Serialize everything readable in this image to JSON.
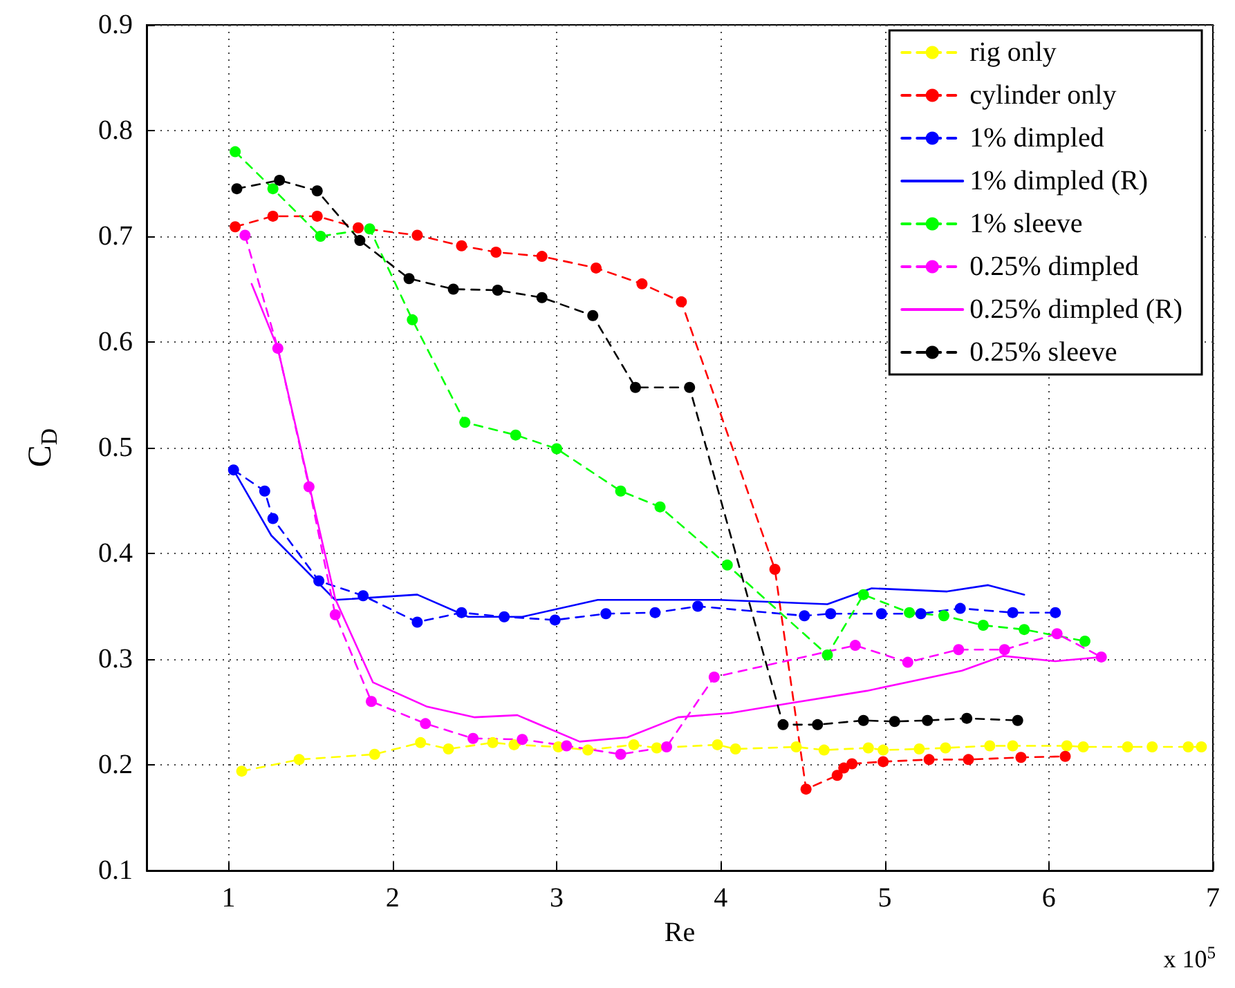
{
  "chart_data": {
    "type": "line",
    "xlabel": "Re",
    "ylabel": "C$_{D}$",
    "annotations": [
      "x 10$^{5}$"
    ],
    "xlim": [
      0.5,
      7
    ],
    "xticks": [
      1,
      2,
      3,
      4,
      5,
      6,
      7
    ],
    "ylim": [
      0.1,
      0.9
    ],
    "yticks": [
      0.1,
      0.2,
      0.3,
      0.4,
      0.5,
      0.6,
      0.7,
      0.8,
      0.9
    ],
    "grid": true,
    "legend": "top right",
    "series": [
      {
        "name": "rig only",
        "color": "#ffff00",
        "marker": "circle",
        "line_style": "dashed",
        "x": [
          1.08,
          1.43,
          1.89,
          2.17,
          2.34,
          2.61,
          2.74,
          3.01,
          3.19,
          3.47,
          3.61,
          3.98,
          4.09,
          4.46,
          4.63,
          4.9,
          4.99,
          5.21,
          5.37,
          5.64,
          5.78,
          6.11,
          6.21,
          6.48,
          6.63,
          6.85,
          6.93
        ],
        "values": [
          0.194,
          0.205,
          0.21,
          0.221,
          0.215,
          0.221,
          0.219,
          0.217,
          0.214,
          0.219,
          0.216,
          0.219,
          0.215,
          0.217,
          0.214,
          0.216,
          0.214,
          0.215,
          0.216,
          0.218,
          0.218,
          0.218,
          0.217,
          0.217,
          0.217,
          0.217,
          0.217
        ]
      },
      {
        "name": "cylinder only",
        "color": "#ff0000",
        "marker": "circle",
        "line_style": "dashed",
        "x": [
          1.04,
          1.27,
          1.54,
          1.79,
          2.15,
          2.42,
          2.63,
          2.91,
          3.24,
          3.52,
          3.76,
          4.33,
          4.52,
          4.71,
          4.75,
          4.8,
          4.99,
          5.27,
          5.51,
          5.83,
          6.1
        ],
        "values": [
          0.709,
          0.719,
          0.719,
          0.708,
          0.701,
          0.691,
          0.685,
          0.681,
          0.67,
          0.655,
          0.638,
          0.385,
          0.177,
          0.19,
          0.197,
          0.201,
          0.203,
          0.205,
          0.205,
          0.207,
          0.208
        ]
      },
      {
        "name": "1% dimpled",
        "color": "#0000ff",
        "marker": "circle",
        "line_style": "dashed",
        "x": [
          1.03,
          1.22,
          1.27,
          1.55,
          1.82,
          2.15,
          2.42,
          2.68,
          2.99,
          3.3,
          3.6,
          3.86,
          4.51,
          4.67,
          4.98,
          5.22,
          5.46,
          5.78,
          6.04
        ],
        "values": [
          0.479,
          0.459,
          0.433,
          0.374,
          0.36,
          0.335,
          0.344,
          0.34,
          0.337,
          0.343,
          0.344,
          0.35,
          0.341,
          0.343,
          0.343,
          0.343,
          0.348,
          0.344,
          0.344
        ]
      },
      {
        "name": "1% dimpled (R)",
        "color": "#0000ff",
        "marker": "none",
        "line_style": "solid",
        "x": [
          1.03,
          1.26,
          1.65,
          2.15,
          2.46,
          2.79,
          3.25,
          3.99,
          4.65,
          4.92,
          5.38,
          5.63,
          5.85
        ],
        "values": [
          0.479,
          0.417,
          0.356,
          0.361,
          0.34,
          0.34,
          0.356,
          0.356,
          0.352,
          0.367,
          0.364,
          0.37,
          0.361
        ]
      },
      {
        "name": "1% sleeve",
        "color": "#00ff00",
        "marker": "circle",
        "line_style": "dashed",
        "x": [
          1.04,
          1.27,
          1.56,
          1.86,
          2.12,
          2.44,
          2.75,
          3.0,
          3.39,
          3.63,
          4.04,
          4.65,
          4.87,
          5.15,
          5.36,
          5.6,
          5.85,
          6.22
        ],
        "values": [
          0.78,
          0.745,
          0.7,
          0.707,
          0.621,
          0.524,
          0.512,
          0.499,
          0.459,
          0.444,
          0.389,
          0.304,
          0.361,
          0.344,
          0.341,
          0.332,
          0.328,
          0.317
        ]
      },
      {
        "name": "0.25% dimpled",
        "color": "#ff00ff",
        "marker": "circle",
        "line_style": "dashed",
        "x": [
          1.1,
          1.3,
          1.49,
          1.65,
          1.87,
          2.2,
          2.49,
          2.79,
          3.06,
          3.39,
          3.67,
          3.96,
          4.82,
          5.14,
          5.45,
          5.73,
          6.05,
          6.32
        ],
        "values": [
          0.701,
          0.594,
          0.463,
          0.342,
          0.26,
          0.239,
          0.225,
          0.224,
          0.218,
          0.21,
          0.217,
          0.283,
          0.313,
          0.297,
          0.309,
          0.309,
          0.324,
          0.302
        ]
      },
      {
        "name": "0.25% dimpled (R)",
        "color": "#ff00ff",
        "marker": "none",
        "line_style": "solid",
        "x": [
          1.14,
          1.3,
          1.65,
          1.88,
          2.21,
          2.5,
          2.76,
          3.14,
          3.43,
          3.74,
          4.06,
          4.41,
          4.89,
          5.47,
          5.72,
          6.04,
          6.32
        ],
        "values": [
          0.655,
          0.594,
          0.357,
          0.278,
          0.255,
          0.245,
          0.247,
          0.222,
          0.226,
          0.245,
          0.249,
          0.258,
          0.27,
          0.289,
          0.303,
          0.298,
          0.302
        ]
      },
      {
        "name": "0.25% sleeve",
        "color": "#000000",
        "marker": "circle",
        "line_style": "dashed",
        "x": [
          1.05,
          1.31,
          1.54,
          1.8,
          2.1,
          2.37,
          2.64,
          2.91,
          3.22,
          3.48,
          3.81,
          4.38,
          4.59,
          4.87,
          5.06,
          5.26,
          5.5,
          5.81
        ],
        "values": [
          0.745,
          0.753,
          0.743,
          0.696,
          0.66,
          0.65,
          0.649,
          0.642,
          0.625,
          0.557,
          0.557,
          0.238,
          0.238,
          0.242,
          0.241,
          0.242,
          0.244,
          0.242
        ]
      }
    ]
  }
}
